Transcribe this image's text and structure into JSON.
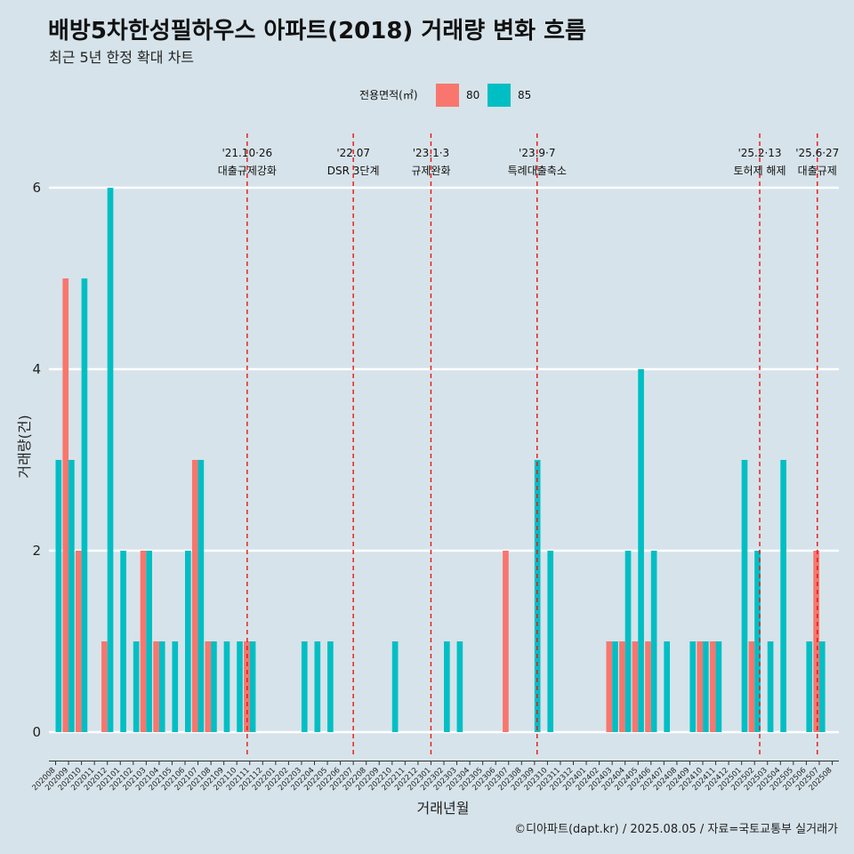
{
  "title": "배방5차한성필하우스 아파트(2018) 거래량 변화 흐름",
  "subtitle": "최근 5년 한정 확대 차트",
  "legend": {
    "title": "전용면적(㎡)",
    "items": [
      {
        "label": "80",
        "color": "#f8766d"
      },
      {
        "label": "85",
        "color": "#00bfc4"
      }
    ]
  },
  "caption": "©디아파트(dapt.kr) / 2025.08.05 / 자료=국토교통부 실거래가",
  "chart_data": {
    "type": "bar",
    "xlabel": "거래년월",
    "ylabel": "거래량(건)",
    "ylim": [
      0,
      6
    ],
    "yticks": [
      0,
      2,
      4,
      6
    ],
    "grid": true,
    "legend_position": "top",
    "categories": [
      "202008",
      "202009",
      "202010",
      "202011",
      "202012",
      "202101",
      "202102",
      "202103",
      "202104",
      "202105",
      "202106",
      "202107",
      "202108",
      "202109",
      "202110",
      "202111",
      "202112",
      "202201",
      "202202",
      "202203",
      "202204",
      "202205",
      "202206",
      "202207",
      "202208",
      "202209",
      "202210",
      "202211",
      "202212",
      "202301",
      "202302",
      "202303",
      "202304",
      "202305",
      "202306",
      "202307",
      "202308",
      "202309",
      "202310",
      "202311",
      "202312",
      "202401",
      "202402",
      "202403",
      "202404",
      "202405",
      "202406",
      "202407",
      "202408",
      "202409",
      "202410",
      "202411",
      "202412",
      "202501",
      "202502",
      "202503",
      "202504",
      "202505",
      "202506",
      "202507",
      "202508"
    ],
    "series": [
      {
        "name": "80",
        "color": "#f8766d",
        "values": [
          0,
          5,
          2,
          0,
          1,
          0,
          0,
          2,
          1,
          0,
          0,
          3,
          1,
          0,
          0,
          1,
          0,
          0,
          0,
          0,
          0,
          0,
          0,
          0,
          0,
          0,
          0,
          0,
          0,
          0,
          0,
          0,
          0,
          0,
          0,
          2,
          0,
          0,
          0,
          0,
          0,
          0,
          0,
          1,
          1,
          1,
          1,
          0,
          0,
          0,
          1,
          1,
          0,
          0,
          1,
          0,
          0,
          0,
          0,
          2,
          0
        ]
      },
      {
        "name": "85",
        "color": "#00bfc4",
        "values": [
          3,
          3,
          5,
          0,
          6,
          2,
          1,
          2,
          1,
          1,
          2,
          3,
          1,
          1,
          1,
          1,
          0,
          0,
          0,
          1,
          1,
          1,
          0,
          0,
          0,
          0,
          1,
          0,
          0,
          0,
          1,
          1,
          0,
          0,
          0,
          0,
          0,
          3,
          2,
          0,
          0,
          0,
          0,
          1,
          2,
          4,
          2,
          1,
          0,
          1,
          1,
          1,
          0,
          3,
          2,
          1,
          3,
          0,
          1,
          1,
          0
        ]
      }
    ],
    "events": [
      {
        "date": "'21.10·26",
        "label": "대출규제강화",
        "category": "202110",
        "offset": 0.8
      },
      {
        "date": "'22.07",
        "label": "DSR 3단계",
        "category": "202207",
        "offset": 0
      },
      {
        "date": "'23.1·3",
        "label": "규제완화",
        "category": "202301",
        "offset": 0
      },
      {
        "date": "'23.9·7",
        "label": "특례대출축소",
        "category": "202309",
        "offset": 0.2
      },
      {
        "date": "'25.2·13",
        "label": "토허제 해제",
        "category": "202502",
        "offset": 0.4
      },
      {
        "date": "'25.6·27",
        "label": "대출규제",
        "category": "202506",
        "offset": 0.85
      }
    ]
  }
}
